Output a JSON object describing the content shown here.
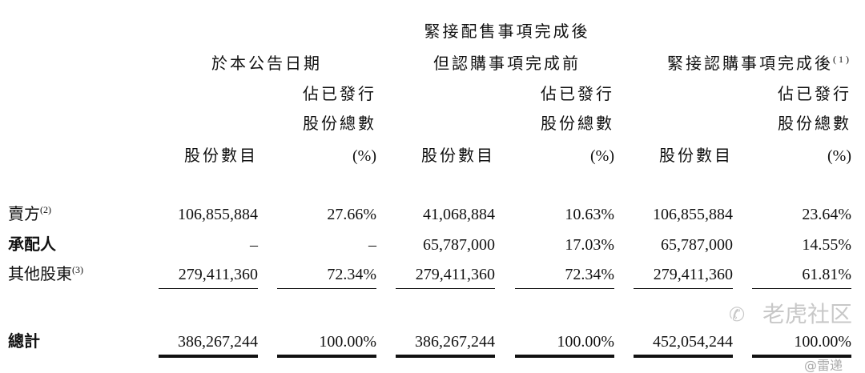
{
  "header": {
    "top_span": "緊接配售事項完成後",
    "groups": [
      {
        "title": "於本公告日期",
        "note": ""
      },
      {
        "title": "但認購事項完成前",
        "note": ""
      },
      {
        "title": "緊接認購事項完成後",
        "note": "(1)"
      }
    ],
    "col_shares": "股份數目",
    "col_pct_line1": "佔已發行",
    "col_pct_line2": "股份總數",
    "col_pct_line3": "(%)"
  },
  "rows": [
    {
      "label": "賣方",
      "note": "(2)",
      "values": [
        "106,855,884",
        "27.66%",
        "41,068,884",
        "10.63%",
        "106,855,884",
        "23.64%"
      ]
    },
    {
      "label": "承配人",
      "note": "",
      "values": [
        "–",
        "–",
        "65,787,000",
        "17.03%",
        "65,787,000",
        "14.55%"
      ]
    },
    {
      "label": "其他股東",
      "note": "(3)",
      "values": [
        "279,411,360",
        "72.34%",
        "279,411,360",
        "72.34%",
        "279,411,360",
        "61.81%"
      ]
    }
  ],
  "total": {
    "label": "總計",
    "values": [
      "386,267,244",
      "100.00%",
      "386,267,244",
      "100.00%",
      "452,054,244",
      "100.00%"
    ]
  },
  "watermark": {
    "brand": "老虎社区",
    "author": "@雷递"
  }
}
